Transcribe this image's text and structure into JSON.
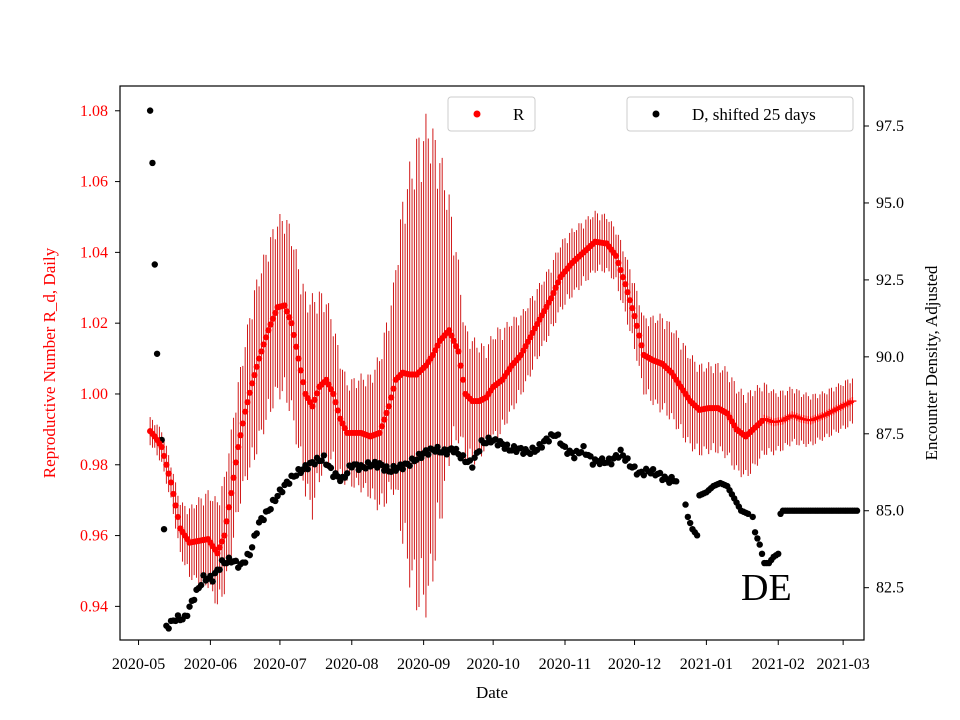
{
  "colors": {
    "r_series": "#ff0000",
    "errorbar": "#cc0000",
    "d_series": "#000000",
    "axis": "#000000"
  },
  "chart_data": {
    "type": "scatter",
    "title": "",
    "xlabel": "Date",
    "ylabel_left": "Reproductive Number R_d, Daily",
    "ylabel_right": "Encounter Density, Adjusted",
    "annotation": "DE",
    "x_range_days": [
      -8,
      313
    ],
    "x_origin": "2020-05-01",
    "ylim_left": [
      0.9305,
      1.087
    ],
    "ylim_right": [
      80.8,
      98.8
    ],
    "x_ticks": [
      {
        "day": 0,
        "label": "2020-05"
      },
      {
        "day": 31,
        "label": "2020-06"
      },
      {
        "day": 61,
        "label": "2020-07"
      },
      {
        "day": 92,
        "label": "2020-08"
      },
      {
        "day": 123,
        "label": "2020-09"
      },
      {
        "day": 153,
        "label": "2020-10"
      },
      {
        "day": 184,
        "label": "2020-11"
      },
      {
        "day": 214,
        "label": "2020-12"
      },
      {
        "day": 245,
        "label": "2021-01"
      },
      {
        "day": 276,
        "label": "2021-02"
      },
      {
        "day": 304,
        "label": "2021-03"
      }
    ],
    "y_ticks_left": [
      "0.94",
      "0.96",
      "0.98",
      "1.00",
      "1.02",
      "1.04",
      "1.06",
      "1.08"
    ],
    "y_ticks_right": [
      "82.5",
      "85.0",
      "87.5",
      "90.0",
      "92.5",
      "95.0",
      "97.5"
    ],
    "legend": [
      {
        "label": "R",
        "position": "upper-center"
      },
      {
        "label": "D, shifted 25 days",
        "position": "upper-right"
      }
    ],
    "series": [
      {
        "name": "R",
        "axis": "left",
        "color": "#ff0000",
        "marker": "dot",
        "keypoints_day": [
          5,
          7,
          10,
          14,
          18,
          22,
          26,
          30,
          34,
          37,
          40,
          43,
          46,
          49,
          52,
          56,
          60,
          63,
          66,
          69,
          72,
          75,
          78,
          81,
          84,
          87,
          90,
          93,
          96,
          100,
          104,
          108,
          111,
          114,
          117,
          120,
          124,
          127,
          130,
          134,
          138,
          141,
          144,
          147,
          150,
          153,
          157,
          161,
          165,
          169,
          173,
          178,
          182,
          187,
          192,
          197,
          202,
          206,
          210,
          214,
          218,
          222,
          226,
          230,
          234,
          238,
          242,
          246,
          250,
          254,
          258,
          262,
          266,
          270,
          274,
          278,
          282,
          286,
          290,
          296,
          302,
          308
        ],
        "keypoints_value": [
          0.9895,
          0.988,
          0.985,
          0.975,
          0.962,
          0.958,
          0.9585,
          0.959,
          0.955,
          0.96,
          0.972,
          0.985,
          0.995,
          1.003,
          1.01,
          1.018,
          1.0245,
          1.025,
          1.02,
          1.01,
          1.0,
          0.9965,
          1.002,
          1.004,
          1.0,
          0.993,
          0.989,
          0.989,
          0.989,
          0.988,
          0.989,
          0.9965,
          1.004,
          1.006,
          1.0055,
          1.0055,
          1.008,
          1.011,
          1.015,
          1.018,
          1.012,
          1.0,
          0.998,
          0.998,
          0.999,
          1.002,
          1.004,
          1.008,
          1.011,
          1.016,
          1.021,
          1.027,
          1.033,
          1.037,
          1.04,
          1.043,
          1.0425,
          1.039,
          1.031,
          1.022,
          1.011,
          1.0095,
          1.0085,
          1.006,
          1.002,
          0.998,
          0.9955,
          0.996,
          0.996,
          0.9945,
          0.99,
          0.988,
          0.9905,
          0.993,
          0.992,
          0.9925,
          0.994,
          0.993,
          0.9925,
          0.994,
          0.996,
          0.998
        ],
        "cross_from_day": 270,
        "errorbar_halfwidth": {
          "day": [
            5,
            15,
            25,
            35,
            45,
            50,
            60,
            70,
            75,
            80,
            90,
            100,
            110,
            115,
            120,
            125,
            130,
            135,
            140,
            145,
            150,
            155,
            165,
            175,
            185,
            195,
            205,
            215,
            225,
            235,
            245,
            255,
            265,
            275,
            285,
            295,
            308
          ],
          "half": [
            0.004,
            0.006,
            0.012,
            0.016,
            0.02,
            0.025,
            0.026,
            0.028,
            0.032,
            0.025,
            0.015,
            0.018,
            0.03,
            0.055,
            0.068,
            0.072,
            0.055,
            0.035,
            0.02,
            0.018,
            0.015,
            0.016,
            0.012,
            0.01,
            0.01,
            0.009,
            0.008,
            0.01,
            0.014,
            0.014,
            0.013,
            0.013,
            0.012,
            0.009,
            0.008,
            0.007,
            0.007
          ]
        }
      },
      {
        "name": "D, shifted 25 days",
        "axis": "right",
        "color": "#000000",
        "marker": "dot",
        "outliers": [
          [
            5,
            98.0
          ],
          [
            6,
            96.3
          ],
          [
            7,
            93.0
          ],
          [
            8,
            90.1
          ],
          [
            10,
            87.3
          ],
          [
            11,
            84.4
          ]
        ],
        "keypoints_day": [
          12,
          16,
          20,
          24,
          28,
          32,
          36,
          40,
          44,
          48,
          52,
          56,
          60,
          64,
          68,
          72,
          76,
          80,
          84,
          88,
          92,
          96,
          100,
          104,
          108,
          112,
          116,
          120,
          124,
          128,
          132,
          136,
          140,
          144,
          148,
          152,
          156,
          160,
          164,
          168,
          172,
          176,
          180,
          184,
          188,
          192,
          196,
          200,
          204,
          208,
          212,
          216,
          220,
          224,
          228,
          232
        ],
        "keypoints_value": [
          81.2,
          81.5,
          81.5,
          82.2,
          82.8,
          82.8,
          83.3,
          83.4,
          83.2,
          83.6,
          84.6,
          85.0,
          85.5,
          85.9,
          86.2,
          86.4,
          86.6,
          86.7,
          86.2,
          86.0,
          86.5,
          86.4,
          86.5,
          86.5,
          86.3,
          86.4,
          86.5,
          86.7,
          86.9,
          87.0,
          86.9,
          87.0,
          86.7,
          86.5,
          87.2,
          87.3,
          87.2,
          87.0,
          87.0,
          86.9,
          87.0,
          87.3,
          87.5,
          87.0,
          86.8,
          87.0,
          86.6,
          86.6,
          86.6,
          86.9,
          86.5,
          86.2,
          86.3,
          86.2,
          86.0,
          86.0
        ],
        "late_segments": [
          {
            "days": [
              236,
              237,
              238,
              239,
              240,
              241
            ],
            "values": [
              85.2,
              84.8,
              84.6,
              84.4,
              84.3,
              84.2
            ]
          },
          {
            "days": [
              242,
              245,
              248,
              251,
              254,
              257,
              260,
              263
            ],
            "values": [
              85.5,
              85.6,
              85.8,
              85.9,
              85.8,
              85.4,
              85.0,
              84.9
            ]
          },
          {
            "days": [
              265,
              266,
              267,
              268,
              269,
              270,
              272,
              274,
              276
            ],
            "values": [
              84.8,
              84.3,
              84.1,
              83.9,
              83.6,
              83.3,
              83.3,
              83.5,
              83.6
            ]
          },
          {
            "days": [
              277,
              278,
              279,
              280,
              284,
              288,
              292,
              296,
              300,
              305,
              310
            ],
            "values": [
              84.9,
              85.0,
              85.0,
              85.0,
              85.0,
              85.0,
              85.0,
              85.0,
              85.0,
              85.0,
              85.0
            ]
          }
        ]
      }
    ]
  }
}
